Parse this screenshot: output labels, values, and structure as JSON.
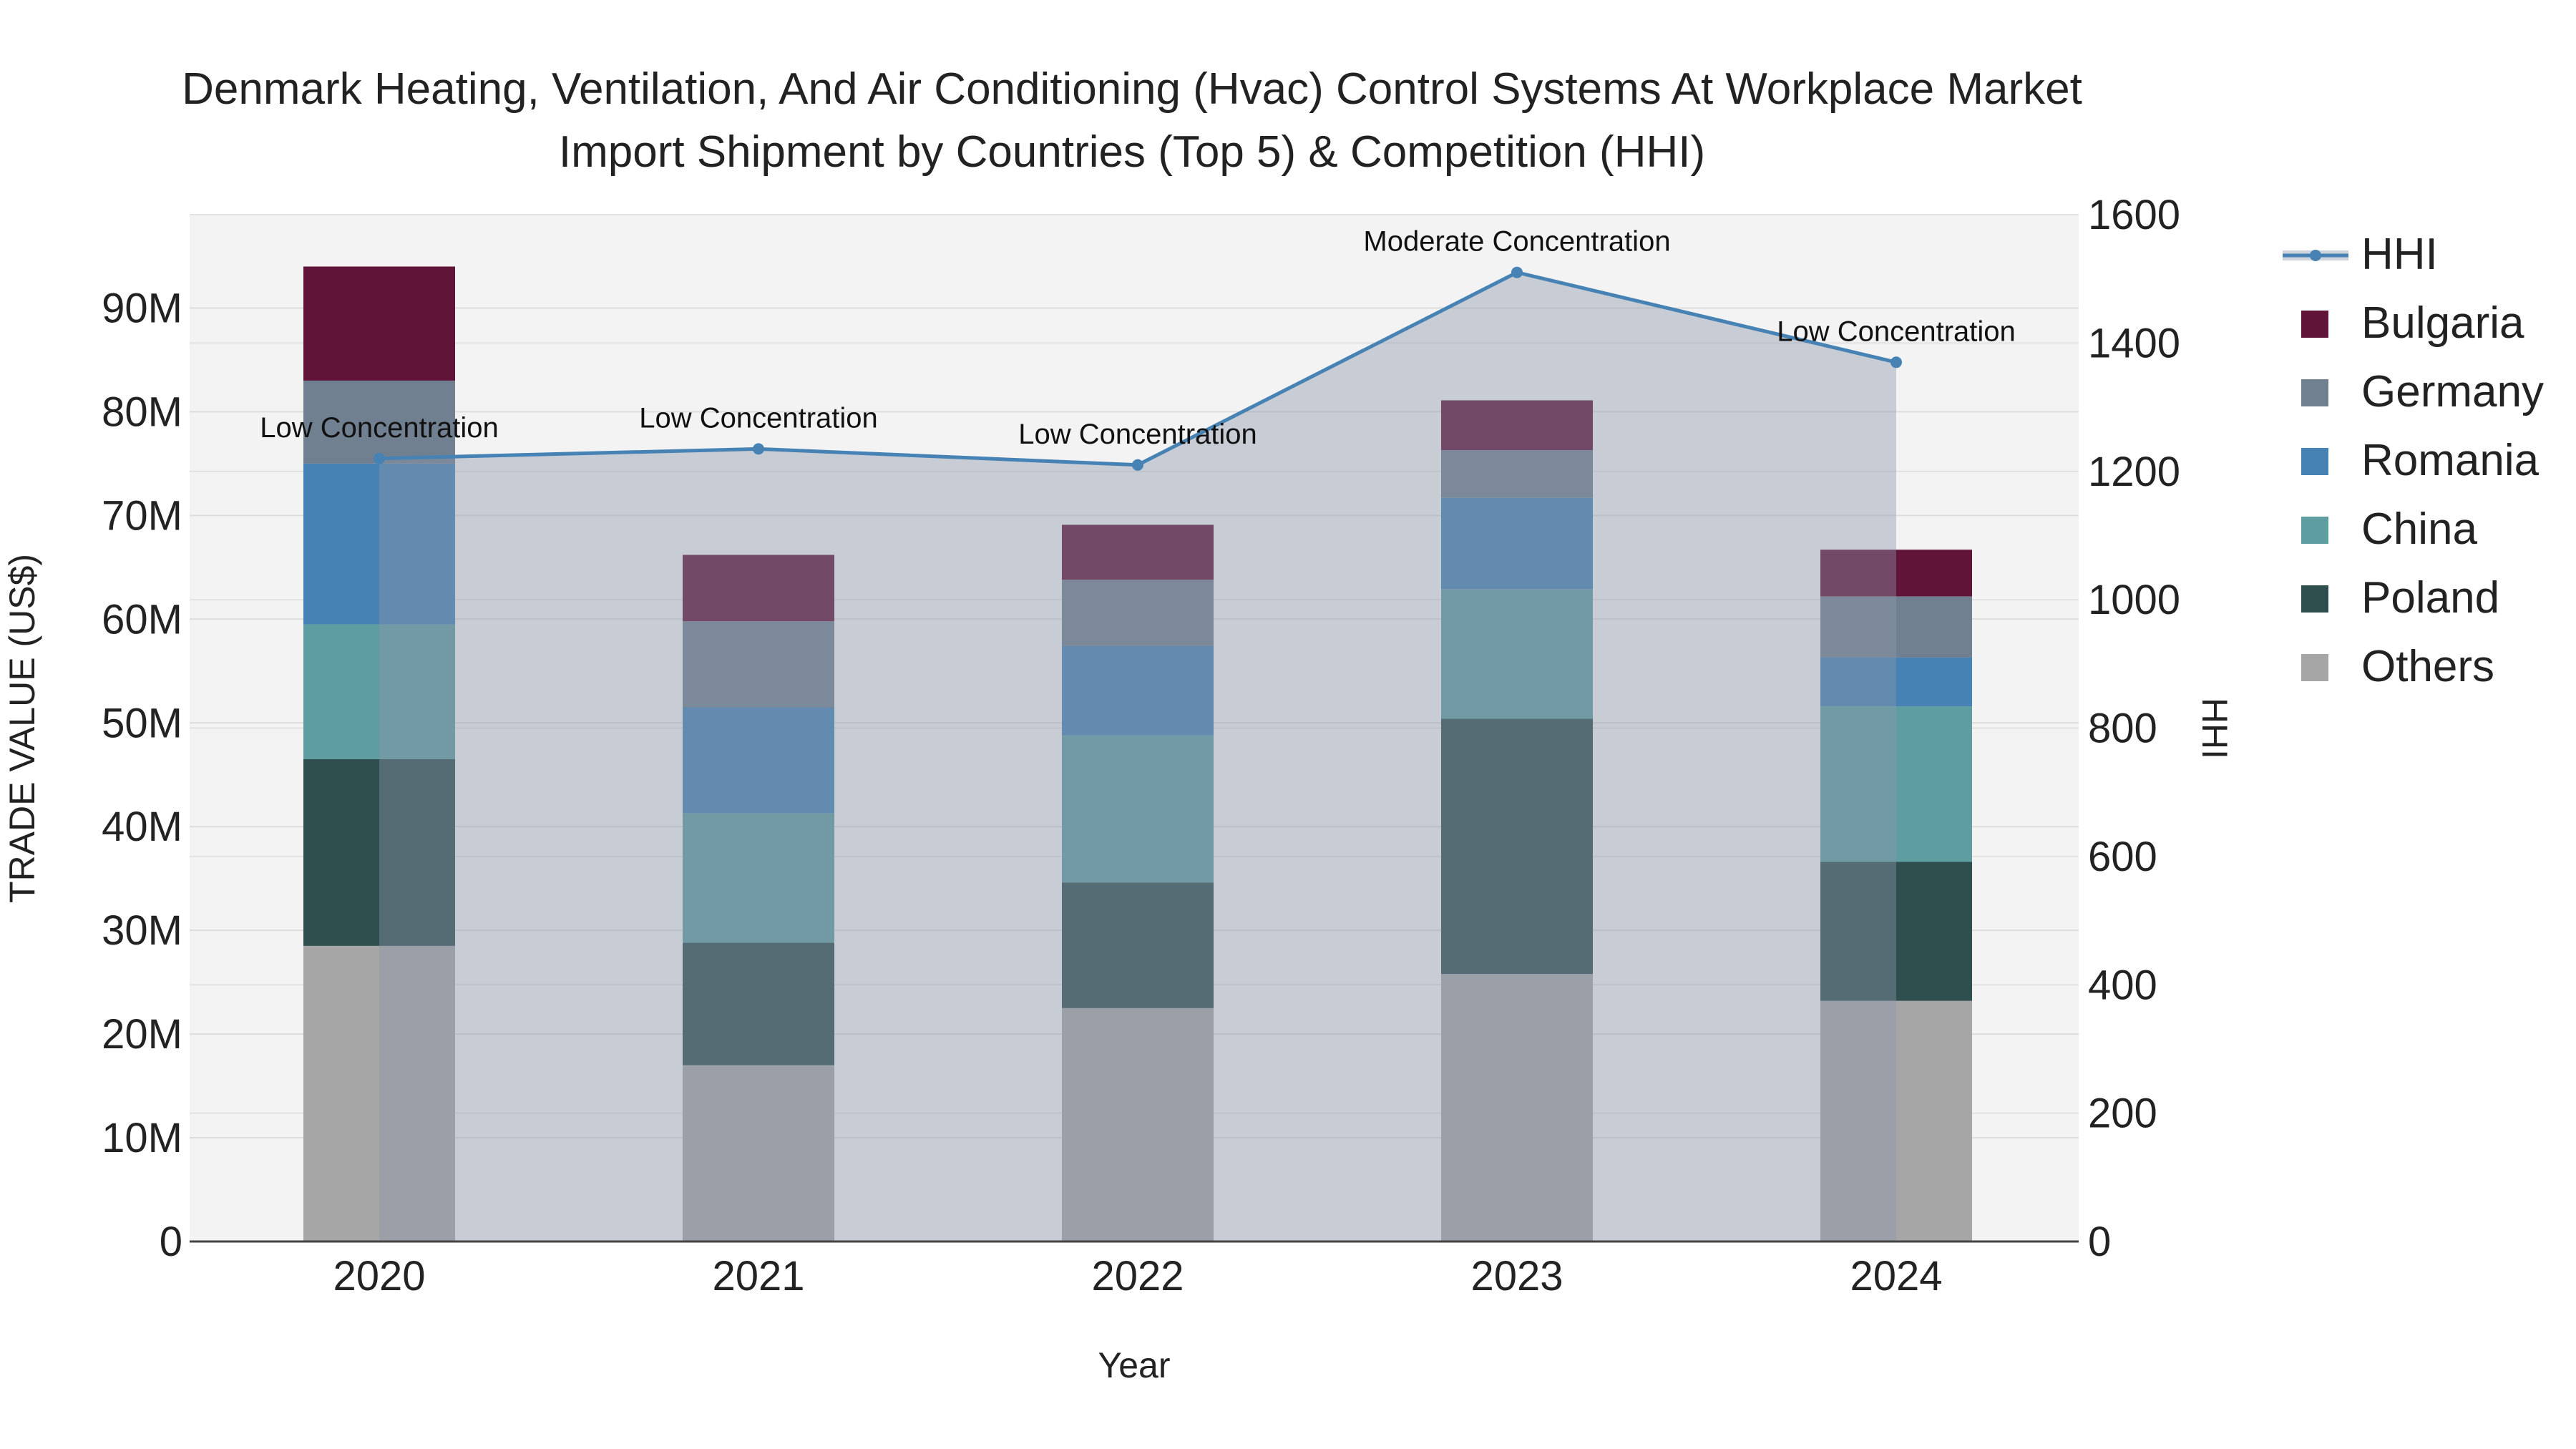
{
  "chart_data": {
    "type": "bar",
    "title_line1": "Denmark Heating, Ventilation, And Air Conditioning (Hvac) Control Systems At Workplace Market",
    "title_line2": "Import Shipment by Countries (Top 5) & Competition (HHI)",
    "xlabel": "Year",
    "ylabel": "TRADE VALUE (US$)",
    "y2label": "HHI",
    "ylim": [
      0,
      99000000
    ],
    "y2lim": [
      0,
      1600
    ],
    "y_ticks": [
      0,
      10000000,
      20000000,
      30000000,
      40000000,
      50000000,
      60000000,
      70000000,
      80000000,
      90000000
    ],
    "y_tick_labels": [
      "0",
      "10M",
      "20M",
      "30M",
      "40M",
      "50M",
      "60M",
      "70M",
      "80M",
      "90M"
    ],
    "y2_ticks": [
      0,
      200,
      400,
      600,
      800,
      1000,
      1200,
      1400,
      1600
    ],
    "y2_tick_labels": [
      "0",
      "200",
      "400",
      "600",
      "800",
      "1000",
      "1200",
      "1400",
      "1600"
    ],
    "categories": [
      "2020",
      "2021",
      "2022",
      "2023",
      "2024"
    ],
    "series": [
      {
        "name": "Others",
        "color": "#a6a6a6",
        "values": [
          28500000,
          17000000,
          22500000,
          25800000,
          23200000
        ]
      },
      {
        "name": "Poland",
        "color": "#2f4f4f",
        "values": [
          18000000,
          11800000,
          12100000,
          24600000,
          13400000
        ]
      },
      {
        "name": "China",
        "color": "#5f9ea0",
        "values": [
          13000000,
          12500000,
          14200000,
          12500000,
          15000000
        ]
      },
      {
        "name": "Romania",
        "color": "#4682b4",
        "values": [
          15500000,
          10200000,
          8600000,
          8800000,
          4700000
        ]
      },
      {
        "name": "Germany",
        "color": "#708090",
        "values": [
          8000000,
          8300000,
          6400000,
          4600000,
          5900000
        ]
      },
      {
        "name": "Bulgaria",
        "color": "#601437",
        "values": [
          11000000,
          6400000,
          5300000,
          4800000,
          4500000
        ]
      }
    ],
    "hhi": {
      "name": "HHI",
      "color": "#4682b4",
      "values": [
        1220,
        1235,
        1210,
        1510,
        1370
      ],
      "annotations": [
        "Low Concentration",
        "Low Concentration",
        "Low Concentration",
        "Moderate Concentration",
        "Low Concentration"
      ]
    },
    "legend": [
      "HHI",
      "Bulgaria",
      "Germany",
      "Romania",
      "China",
      "Poland",
      "Others"
    ],
    "legend_position": "top-right"
  }
}
